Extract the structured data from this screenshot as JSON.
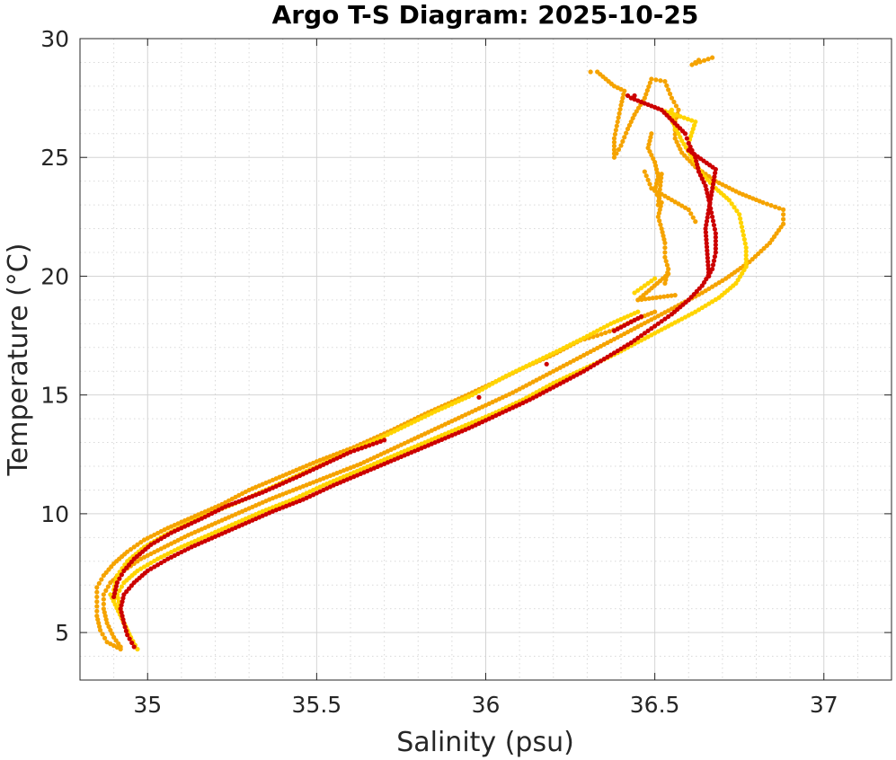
{
  "chart_data": {
    "type": "scatter",
    "title": "Argo T-S Diagram: 2025-10-25",
    "xlabel": "Salinity (psu)",
    "ylabel": "Temperature (°C)",
    "xlim": [
      34.8,
      37.2
    ],
    "ylim": [
      3,
      30
    ],
    "xticks": [
      35,
      35.5,
      36,
      36.5,
      37
    ],
    "yticks": [
      5,
      10,
      15,
      20,
      25,
      30
    ],
    "xtick_labels": [
      "35",
      "35.5",
      "36",
      "36.5",
      "37"
    ],
    "ytick_labels": [
      "5",
      "10",
      "15",
      "20",
      "25",
      "30"
    ],
    "x_minor_step": 0.1,
    "y_minor_step": 1,
    "grid": true,
    "minor_grid": true,
    "legend": false,
    "series": [
      {
        "color": "#f5a300",
        "points": [
          [
            34.92,
            4.4
          ],
          [
            34.9,
            4.8
          ],
          [
            34.88,
            5.4
          ],
          [
            34.87,
            6.0
          ],
          [
            34.87,
            6.6
          ],
          [
            34.89,
            7.1
          ],
          [
            34.93,
            7.6
          ],
          [
            34.98,
            8.1
          ],
          [
            35.05,
            8.6
          ],
          [
            35.12,
            9.1
          ],
          [
            35.2,
            9.6
          ],
          [
            35.28,
            10.1
          ],
          [
            35.36,
            10.6
          ],
          [
            35.45,
            11.1
          ],
          [
            35.54,
            11.6
          ],
          [
            35.63,
            12.1
          ],
          [
            35.72,
            12.7
          ],
          [
            35.81,
            13.3
          ],
          [
            35.9,
            13.9
          ],
          [
            35.99,
            14.5
          ],
          [
            36.08,
            15.1
          ],
          [
            36.16,
            15.7
          ],
          [
            36.24,
            16.3
          ],
          [
            36.32,
            16.9
          ],
          [
            36.4,
            17.5
          ],
          [
            36.48,
            18.1
          ],
          [
            36.56,
            18.7
          ],
          [
            36.64,
            19.3
          ],
          [
            36.71,
            19.9
          ],
          [
            36.78,
            20.6
          ],
          [
            36.84,
            21.4
          ],
          [
            36.88,
            22.2
          ],
          [
            36.88,
            22.8
          ],
          [
            36.82,
            23.1
          ],
          [
            36.75,
            23.5
          ],
          [
            36.68,
            24.0
          ],
          [
            36.62,
            24.6
          ],
          [
            36.58,
            25.2
          ],
          [
            36.56,
            25.8
          ],
          [
            36.56,
            26.5
          ],
          [
            36.57,
            27.0
          ],
          [
            36.55,
            27.5
          ],
          [
            36.53,
            28.2
          ],
          [
            36.49,
            28.3
          ],
          [
            36.47,
            27.5
          ],
          [
            36.44,
            26.8
          ],
          [
            36.42,
            26.2
          ],
          [
            36.4,
            25.5
          ],
          [
            36.38,
            25.0
          ],
          [
            36.38,
            25.8
          ],
          [
            36.39,
            26.5
          ],
          [
            36.4,
            27.2
          ],
          [
            36.41,
            27.8
          ],
          [
            36.38,
            28.0
          ],
          [
            36.33,
            28.6
          ],
          [
            36.31,
            28.6
          ],
          [
            36.49,
            26.0
          ],
          [
            36.48,
            25.4
          ],
          [
            36.5,
            24.8
          ],
          [
            36.51,
            24.2
          ],
          [
            36.5,
            23.6
          ],
          [
            36.52,
            23.1
          ],
          [
            36.51,
            22.5
          ],
          [
            36.52,
            22.0
          ],
          [
            36.53,
            21.4
          ],
          [
            36.53,
            20.8
          ],
          [
            36.54,
            20.3
          ],
          [
            36.53,
            19.7
          ],
          [
            36.47,
            24.4
          ],
          [
            36.49,
            23.7
          ],
          [
            36.6,
            22.8
          ],
          [
            36.62,
            22.3
          ],
          [
            36.5,
            18.5
          ],
          [
            36.43,
            18.1
          ],
          [
            36.39,
            17.8
          ],
          [
            36.33,
            17.5
          ],
          [
            36.28,
            17.3
          ],
          [
            36.2,
            16.7
          ],
          [
            36.12,
            16.2
          ],
          [
            36.02,
            15.5
          ],
          [
            35.93,
            14.9
          ],
          [
            35.82,
            14.2
          ],
          [
            35.72,
            13.5
          ],
          [
            35.61,
            12.8
          ],
          [
            35.5,
            12.2
          ],
          [
            35.4,
            11.6
          ],
          [
            35.3,
            11.0
          ],
          [
            35.22,
            10.4
          ],
          [
            35.14,
            9.9
          ],
          [
            35.06,
            9.4
          ],
          [
            34.99,
            8.9
          ],
          [
            34.94,
            8.4
          ],
          [
            34.9,
            7.9
          ],
          [
            34.87,
            7.4
          ],
          [
            34.85,
            6.9
          ],
          [
            34.85,
            6.3
          ],
          [
            34.85,
            5.7
          ],
          [
            34.86,
            5.1
          ],
          [
            34.88,
            4.6
          ],
          [
            34.92,
            4.3
          ],
          [
            36.63,
            29.1
          ],
          [
            36.61,
            28.9
          ],
          [
            36.67,
            29.2
          ],
          [
            36.52,
            24.3
          ],
          [
            36.51,
            23.0
          ],
          [
            36.54,
            20.1
          ],
          [
            36.45,
            19.0
          ],
          [
            36.56,
            19.2
          ]
        ]
      },
      {
        "color": "#ffd400",
        "points": [
          [
            34.97,
            4.3
          ],
          [
            34.95,
            4.8
          ],
          [
            34.93,
            5.4
          ],
          [
            34.92,
            6.0
          ],
          [
            34.91,
            6.6
          ],
          [
            34.93,
            7.1
          ],
          [
            34.97,
            7.6
          ],
          [
            35.03,
            8.1
          ],
          [
            35.1,
            8.6
          ],
          [
            35.18,
            9.1
          ],
          [
            35.26,
            9.6
          ],
          [
            35.34,
            10.1
          ],
          [
            35.43,
            10.6
          ],
          [
            35.52,
            11.2
          ],
          [
            35.62,
            11.8
          ],
          [
            35.72,
            12.4
          ],
          [
            35.82,
            13.0
          ],
          [
            35.92,
            13.6
          ],
          [
            36.02,
            14.2
          ],
          [
            36.11,
            14.8
          ],
          [
            36.2,
            15.5
          ],
          [
            36.29,
            16.1
          ],
          [
            36.38,
            16.7
          ],
          [
            36.46,
            17.3
          ],
          [
            36.54,
            17.9
          ],
          [
            36.62,
            18.5
          ],
          [
            36.69,
            19.1
          ],
          [
            36.74,
            19.7
          ],
          [
            36.77,
            20.4
          ],
          [
            36.77,
            21.2
          ],
          [
            36.76,
            21.9
          ],
          [
            36.75,
            22.6
          ],
          [
            36.72,
            23.2
          ],
          [
            36.68,
            23.7
          ],
          [
            36.64,
            24.3
          ],
          [
            36.61,
            25.0
          ],
          [
            36.58,
            25.7
          ],
          [
            36.56,
            26.3
          ],
          [
            36.54,
            26.8
          ],
          [
            36.52,
            27.0
          ],
          [
            36.62,
            26.5
          ],
          [
            36.6,
            25.6
          ],
          [
            36.45,
            18.5
          ],
          [
            36.37,
            18.0
          ],
          [
            36.29,
            17.4
          ],
          [
            36.22,
            16.9
          ],
          [
            36.06,
            15.8
          ],
          [
            35.96,
            15.0
          ],
          [
            35.85,
            14.3
          ],
          [
            35.69,
            13.2
          ],
          [
            35.58,
            12.5
          ],
          [
            35.47,
            11.8
          ],
          [
            35.38,
            11.2
          ],
          [
            35.27,
            10.5
          ],
          [
            35.2,
            10.1
          ],
          [
            35.12,
            9.6
          ],
          [
            35.05,
            9.1
          ],
          [
            34.99,
            8.6
          ],
          [
            34.94,
            8.0
          ],
          [
            34.91,
            7.4
          ],
          [
            34.9,
            6.8
          ],
          [
            34.9,
            6.4
          ],
          [
            34.89,
            6.6
          ],
          [
            34.96,
            4.5
          ],
          [
            36.55,
            27.0
          ],
          [
            36.56,
            26.2
          ],
          [
            36.5,
            19.9
          ],
          [
            36.44,
            19.3
          ]
        ]
      },
      {
        "color": "#cc0000",
        "points": [
          [
            34.96,
            4.4
          ],
          [
            34.94,
            4.9
          ],
          [
            34.93,
            5.4
          ],
          [
            34.92,
            6.0
          ],
          [
            34.93,
            6.6
          ],
          [
            34.96,
            7.1
          ],
          [
            35.0,
            7.6
          ],
          [
            35.06,
            8.1
          ],
          [
            35.13,
            8.6
          ],
          [
            35.21,
            9.1
          ],
          [
            35.29,
            9.6
          ],
          [
            35.37,
            10.1
          ],
          [
            35.46,
            10.6
          ],
          [
            35.55,
            11.2
          ],
          [
            35.65,
            11.8
          ],
          [
            35.75,
            12.4
          ],
          [
            35.85,
            13.0
          ],
          [
            35.95,
            13.6
          ],
          [
            36.04,
            14.2
          ],
          [
            36.13,
            14.8
          ],
          [
            36.21,
            15.4
          ],
          [
            36.29,
            16.0
          ],
          [
            36.36,
            16.6
          ],
          [
            36.43,
            17.2
          ],
          [
            36.49,
            17.8
          ],
          [
            36.55,
            18.4
          ],
          [
            36.6,
            19.0
          ],
          [
            36.64,
            19.6
          ],
          [
            36.67,
            20.3
          ],
          [
            36.68,
            21.0
          ],
          [
            36.68,
            21.8
          ],
          [
            36.67,
            22.5
          ],
          [
            36.66,
            23.2
          ],
          [
            36.65,
            23.8
          ],
          [
            36.63,
            24.4
          ],
          [
            36.62,
            25.0
          ],
          [
            36.6,
            25.6
          ],
          [
            36.59,
            26.0
          ],
          [
            36.52,
            27.0
          ],
          [
            36.43,
            27.5
          ],
          [
            36.42,
            27.6
          ],
          [
            36.44,
            27.6
          ],
          [
            36.46,
            18.3
          ],
          [
            36.38,
            17.7
          ],
          [
            36.18,
            16.3
          ],
          [
            35.98,
            14.9
          ],
          [
            35.7,
            13.1
          ],
          [
            35.6,
            12.6
          ],
          [
            35.45,
            11.6
          ],
          [
            35.34,
            10.9
          ],
          [
            35.23,
            10.3
          ],
          [
            35.16,
            9.8
          ],
          [
            35.07,
            9.2
          ],
          [
            35.01,
            8.7
          ],
          [
            34.96,
            8.1
          ],
          [
            34.93,
            7.6
          ],
          [
            34.91,
            7.1
          ],
          [
            34.9,
            6.5
          ],
          [
            36.66,
            20.0
          ],
          [
            36.65,
            22.0
          ],
          [
            36.68,
            24.5
          ],
          [
            36.6,
            25.3
          ]
        ]
      }
    ]
  }
}
